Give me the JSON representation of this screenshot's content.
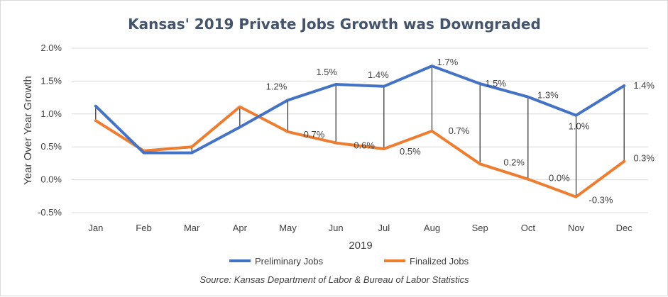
{
  "chart_data": {
    "type": "line",
    "title": "Kansas' 2019 Private Jobs Growth was Downgraded",
    "xlabel": "2019",
    "ylabel": "Year Over Year Growth",
    "categories": [
      "Jan",
      "Feb",
      "Mar",
      "Apr",
      "May",
      "Jun",
      "Jul",
      "Aug",
      "Sep",
      "Oct",
      "Nov",
      "Dec"
    ],
    "ylim": [
      -0.5,
      2.0
    ],
    "yticks": [
      "-0.5%",
      "0.0%",
      "0.5%",
      "1.0%",
      "1.5%",
      "2.0%"
    ],
    "ytick_values": [
      -0.5,
      0.0,
      0.5,
      1.0,
      1.5,
      2.0
    ],
    "grid": true,
    "legend_position": "bottom",
    "series": [
      {
        "name": "Preliminary Jobs",
        "color": "#4472c4",
        "values": [
          1.12,
          0.41,
          0.41,
          0.8,
          1.21,
          1.45,
          1.42,
          1.73,
          1.46,
          1.26,
          0.98,
          1.43
        ],
        "labels": [
          "",
          "",
          "",
          "",
          "1.2%",
          "1.5%",
          "1.4%",
          "1.7%",
          "1.5%",
          "1.3%",
          "1.0%",
          "1.4%"
        ]
      },
      {
        "name": "Finalized Jobs",
        "color": "#ed7d31",
        "values": [
          0.9,
          0.44,
          0.5,
          1.11,
          0.73,
          0.56,
          0.47,
          0.74,
          0.24,
          0.01,
          -0.26,
          0.28
        ],
        "labels": [
          "",
          "",
          "",
          "",
          "0.7%",
          "0.6%",
          "0.5%",
          "0.7%",
          "0.2%",
          "0.0%",
          "-0.3%",
          "0.3%"
        ]
      }
    ],
    "source": "Source: Kansas Department of Labor & Bureau of Labor Statistics"
  }
}
